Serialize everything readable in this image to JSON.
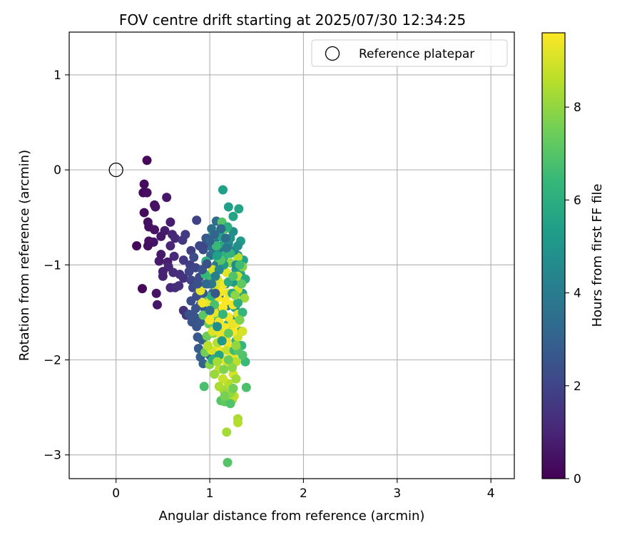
{
  "chart_data": {
    "type": "scatter",
    "title": "FOV centre drift starting at 2025/07/30 12:34:25",
    "xlabel": "Angular distance from reference (arcmin)",
    "ylabel": "Rotation from reference (arcmin)",
    "xlim": [
      -0.5,
      4.25
    ],
    "ylim": [
      -3.25,
      1.45
    ],
    "xticks": [
      0,
      1,
      2,
      3,
      4
    ],
    "xtick_labels": [
      "0",
      "1",
      "2",
      "3",
      "4"
    ],
    "yticks": [
      1,
      0,
      -1,
      -2,
      -3
    ],
    "ytick_labels": [
      "1",
      "0",
      "−1",
      "−2",
      "−3"
    ],
    "grid": true,
    "legend": {
      "position": "top-right",
      "entries": [
        {
          "label": "Reference platepar",
          "marker": "open-circle"
        }
      ]
    },
    "reference_point": {
      "x": 0,
      "y": 0
    },
    "colorbar": {
      "label": "Hours from first FF file",
      "range": [
        0,
        9.6
      ],
      "ticks": [
        0,
        2,
        4,
        6,
        8
      ],
      "tick_labels": [
        "0",
        "2",
        "4",
        "6",
        "8"
      ],
      "colormap": "viridis",
      "stops": [
        "#440154",
        "#482878",
        "#3e4989",
        "#31688e",
        "#26828e",
        "#1f9e89",
        "#35b779",
        "#6ece58",
        "#b5de2b",
        "#fde725"
      ]
    },
    "points": [
      [
        0.33,
        0.1,
        0.2
      ],
      [
        0.3,
        -0.15,
        0.3
      ],
      [
        0.29,
        -0.24,
        0.25
      ],
      [
        0.33,
        -0.24,
        0.35
      ],
      [
        0.54,
        -0.29,
        0.6
      ],
      [
        0.41,
        -0.37,
        0.4
      ],
      [
        0.42,
        -0.39,
        0.45
      ],
      [
        0.3,
        -0.45,
        0.3
      ],
      [
        0.34,
        -0.55,
        0.35
      ],
      [
        0.35,
        -0.6,
        0.4
      ],
      [
        0.41,
        -0.63,
        0.5
      ],
      [
        0.58,
        -0.55,
        0.8
      ],
      [
        0.52,
        -0.64,
        0.7
      ],
      [
        0.48,
        -0.7,
        0.6
      ],
      [
        0.6,
        -0.68,
        1.0
      ],
      [
        0.35,
        -0.75,
        0.45
      ],
      [
        0.4,
        -0.76,
        0.5
      ],
      [
        0.22,
        -0.8,
        0.2
      ],
      [
        0.34,
        -0.8,
        0.4
      ],
      [
        0.58,
        -0.8,
        1.0
      ],
      [
        0.63,
        -0.72,
        1.1
      ],
      [
        0.62,
        -0.91,
        1.1
      ],
      [
        0.48,
        -0.89,
        0.7
      ],
      [
        0.46,
        -0.96,
        0.7
      ],
      [
        0.55,
        -0.97,
        0.8
      ],
      [
        0.56,
        -1.02,
        1.0
      ],
      [
        0.5,
        -1.07,
        0.9
      ],
      [
        0.5,
        -1.12,
        0.9
      ],
      [
        0.61,
        -1.08,
        1.2
      ],
      [
        0.68,
        -1.1,
        1.3
      ],
      [
        0.72,
        -1.14,
        1.4
      ],
      [
        0.28,
        -1.25,
        0.2
      ],
      [
        0.58,
        -1.24,
        1.1
      ],
      [
        0.63,
        -1.24,
        1.2
      ],
      [
        0.67,
        -1.22,
        1.3
      ],
      [
        0.43,
        -1.3,
        0.5
      ],
      [
        0.44,
        -1.42,
        0.6
      ],
      [
        0.72,
        -1.48,
        1.4
      ],
      [
        0.75,
        -1.53,
        1.5
      ],
      [
        0.86,
        -0.53,
        1.9
      ],
      [
        0.74,
        -0.68,
        1.7
      ],
      [
        0.71,
        -0.74,
        1.6
      ],
      [
        0.8,
        -0.85,
        1.8
      ],
      [
        0.72,
        -0.95,
        1.6
      ],
      [
        0.79,
        -1.0,
        1.8
      ],
      [
        0.78,
        -1.07,
        2.0
      ],
      [
        0.8,
        -1.16,
        2.0
      ],
      [
        0.85,
        -1.03,
        2.0
      ],
      [
        0.89,
        -0.8,
        2.1
      ],
      [
        0.93,
        -0.84,
        2.2
      ],
      [
        0.96,
        -0.97,
        2.3
      ],
      [
        0.89,
        -1.13,
        2.2
      ],
      [
        0.82,
        -1.24,
        2.2
      ],
      [
        0.86,
        -1.33,
        2.3
      ],
      [
        0.8,
        -1.38,
        2.3
      ],
      [
        0.9,
        -1.42,
        2.4
      ],
      [
        0.78,
        -1.52,
        2.4
      ],
      [
        0.84,
        -1.55,
        2.5
      ],
      [
        0.81,
        -1.6,
        2.5
      ],
      [
        0.86,
        -1.65,
        2.5
      ],
      [
        0.9,
        -1.6,
        2.6
      ],
      [
        0.95,
        -1.47,
        2.7
      ],
      [
        0.93,
        -1.3,
        2.7
      ],
      [
        0.98,
        -1.2,
        2.8
      ],
      [
        1.02,
        -1.1,
        2.9
      ],
      [
        0.87,
        -1.76,
        2.7
      ],
      [
        0.92,
        -1.79,
        2.8
      ],
      [
        0.88,
        -1.88,
        2.8
      ],
      [
        0.93,
        -1.93,
        2.9
      ],
      [
        0.9,
        -1.97,
        2.9
      ],
      [
        0.93,
        -2.04,
        3.0
      ],
      [
        1.0,
        -1.95,
        3.1
      ],
      [
        1.03,
        -1.3,
        3.1
      ],
      [
        1.07,
        -1.58,
        3.2
      ],
      [
        1.01,
        -0.9,
        3.3
      ],
      [
        1.05,
        -0.75,
        3.3
      ],
      [
        1.07,
        -0.54,
        3.4
      ],
      [
        1.02,
        -0.62,
        3.5
      ],
      [
        1.1,
        -0.7,
        3.6
      ],
      [
        1.12,
        -0.85,
        3.7
      ],
      [
        1.07,
        -1.0,
        3.8
      ],
      [
        1.14,
        -1.05,
        3.9
      ],
      [
        1.05,
        -1.22,
        3.9
      ],
      [
        1.1,
        -1.33,
        4.0
      ],
      [
        1.17,
        -1.2,
        4.1
      ],
      [
        1.13,
        -1.48,
        4.2
      ],
      [
        1.19,
        -1.43,
        4.3
      ],
      [
        1.15,
        -0.95,
        4.4
      ],
      [
        1.2,
        -0.78,
        4.5
      ],
      [
        1.25,
        -0.65,
        4.7
      ],
      [
        1.14,
        -0.21,
        5.4
      ],
      [
        1.2,
        -0.39,
        5.4
      ],
      [
        1.25,
        -0.49,
        5.6
      ],
      [
        1.31,
        -0.41,
        5.6
      ],
      [
        1.33,
        -0.75,
        5.3
      ],
      [
        1.36,
        -0.95,
        5.5
      ],
      [
        1.3,
        -0.9,
        5.0
      ],
      [
        1.28,
        -1.05,
        5.2
      ],
      [
        1.33,
        -1.1,
        5.5
      ],
      [
        1.25,
        -1.18,
        5.0
      ],
      [
        1.3,
        -1.22,
        5.3
      ],
      [
        1.35,
        -1.3,
        5.6
      ],
      [
        1.25,
        -1.3,
        4.9
      ],
      [
        1.27,
        -1.45,
        5.5
      ],
      [
        1.3,
        -1.55,
        5.8
      ],
      [
        1.22,
        -1.57,
        5.1
      ],
      [
        1.2,
        -1.62,
        5.7
      ],
      [
        1.33,
        -1.7,
        6.0
      ],
      [
        1.28,
        -1.8,
        6.2
      ],
      [
        1.34,
        -1.85,
        6.3
      ],
      [
        1.38,
        -2.02,
        6.5
      ],
      [
        1.39,
        -2.29,
        6.8
      ],
      [
        1.35,
        -1.95,
        6.9
      ],
      [
        1.02,
        -0.7,
        6.2
      ],
      [
        1.1,
        -0.65,
        6.6
      ],
      [
        1.13,
        -0.55,
        7.0
      ],
      [
        1.17,
        -0.62,
        7.2
      ],
      [
        0.96,
        -0.96,
        6.0
      ],
      [
        1.08,
        -0.92,
        6.4
      ],
      [
        0.99,
        -1.13,
        6.7
      ],
      [
        0.9,
        -1.27,
        7.0
      ],
      [
        0.98,
        -1.38,
        7.3
      ],
      [
        0.93,
        -1.53,
        7.1
      ],
      [
        1.06,
        -1.52,
        7.6
      ],
      [
        0.99,
        -1.62,
        7.3
      ],
      [
        0.97,
        -1.75,
        7.4
      ],
      [
        1.04,
        -1.72,
        7.8
      ],
      [
        0.95,
        -1.92,
        7.5
      ],
      [
        1.0,
        -2.05,
        7.8
      ],
      [
        0.94,
        -2.28,
        6.8
      ],
      [
        1.12,
        -2.43,
        7.0
      ],
      [
        1.16,
        -2.44,
        7.2
      ],
      [
        1.19,
        -3.08,
        7.0
      ],
      [
        1.18,
        -2.76,
        8.3
      ],
      [
        1.3,
        -2.62,
        8.4
      ],
      [
        1.3,
        -2.66,
        8.5
      ],
      [
        1.24,
        -2.42,
        8.3
      ],
      [
        1.26,
        -2.38,
        8.6
      ],
      [
        1.22,
        -2.35,
        8.0
      ],
      [
        1.15,
        -2.32,
        8.2
      ],
      [
        1.2,
        -2.25,
        8.5
      ],
      [
        1.14,
        -2.2,
        8.8
      ],
      [
        1.25,
        -2.15,
        9.0
      ],
      [
        1.1,
        -2.1,
        8.7
      ],
      [
        1.2,
        -2.05,
        9.1
      ],
      [
        1.15,
        -2.0,
        9.2
      ],
      [
        1.25,
        -1.95,
        9.3
      ],
      [
        1.1,
        -1.9,
        9.4
      ],
      [
        1.2,
        -1.86,
        9.5
      ],
      [
        1.18,
        -1.8,
        9.4
      ],
      [
        1.3,
        -1.76,
        8.9
      ],
      [
        1.12,
        -1.74,
        9.3
      ],
      [
        1.25,
        -1.7,
        9.6
      ],
      [
        1.03,
        -1.7,
        9.1
      ],
      [
        1.16,
        -1.66,
        9.5
      ],
      [
        1.28,
        -1.62,
        9.6
      ],
      [
        1.1,
        -1.6,
        9.4
      ],
      [
        1.2,
        -1.55,
        9.5
      ],
      [
        1.3,
        -1.52,
        9.2
      ],
      [
        1.05,
        -1.5,
        9.3
      ],
      [
        1.14,
        -1.45,
        9.6
      ],
      [
        1.25,
        -1.42,
        9.4
      ],
      [
        0.99,
        -1.4,
        9.2
      ],
      [
        1.08,
        -1.35,
        9.5
      ],
      [
        1.2,
        -1.3,
        9.3
      ],
      [
        1.3,
        -1.26,
        9.0
      ],
      [
        0.9,
        -1.27,
        9.3
      ],
      [
        1.15,
        -1.2,
        9.4
      ],
      [
        1.08,
        -1.15,
        9.1
      ],
      [
        1.3,
        -1.12,
        8.8
      ],
      [
        1.18,
        -1.08,
        9.2
      ],
      [
        1.03,
        -1.05,
        9.0
      ],
      [
        1.14,
        -1.0,
        8.7
      ],
      [
        1.3,
        -0.92,
        8.6
      ],
      [
        0.92,
        -1.4,
        9.4
      ],
      [
        1.02,
        -1.9,
        9.0
      ],
      [
        1.37,
        -1.35,
        8.2
      ],
      [
        1.35,
        -1.02,
        7.8
      ],
      [
        1.22,
        -0.98,
        8.0
      ],
      [
        0.98,
        -1.85,
        8.6
      ],
      [
        1.08,
        -1.82,
        8.5
      ],
      [
        1.18,
        -1.9,
        8.8
      ],
      [
        1.28,
        -2.02,
        8.6
      ],
      [
        1.35,
        -1.7,
        9.0
      ],
      [
        1.1,
        -2.28,
        8.4
      ],
      [
        1.28,
        -2.2,
        8.2
      ],
      [
        1.24,
        -1.62,
        9.3
      ],
      [
        1.12,
        -1.28,
        9.5
      ],
      [
        1.06,
        -1.22,
        9.0
      ],
      [
        1.17,
        -1.38,
        9.6
      ],
      [
        1.0,
        -1.58,
        9.5
      ],
      [
        1.1,
        -1.7,
        9.3
      ],
      [
        1.24,
        -1.3,
        5.8
      ],
      [
        1.15,
        -1.0,
        5.2
      ],
      [
        1.2,
        -1.18,
        5.9
      ],
      [
        1.08,
        -0.8,
        5.0
      ],
      [
        1.16,
        -0.9,
        6.1
      ],
      [
        1.22,
        -0.72,
        4.8
      ],
      [
        1.26,
        -0.85,
        4.4
      ],
      [
        1.3,
        -0.8,
        4.8
      ],
      [
        1.28,
        -1.0,
        4.6
      ],
      [
        1.1,
        -1.05,
        4.5
      ],
      [
        1.06,
        -1.12,
        4.2
      ],
      [
        1.02,
        -1.2,
        3.8
      ],
      [
        1.04,
        -0.85,
        3.6
      ],
      [
        0.98,
        -0.8,
        3.4
      ],
      [
        1.08,
        -1.65,
        4.7
      ],
      [
        1.13,
        -1.8,
        5.1
      ],
      [
        1.1,
        -1.95,
        5.6
      ],
      [
        1.03,
        -2.0,
        6.0
      ],
      [
        1.26,
        -1.9,
        6.6
      ],
      [
        1.35,
        -1.5,
        6.3
      ],
      [
        1.3,
        -1.4,
        6.0
      ],
      [
        1.38,
        -1.15,
        5.9
      ],
      [
        1.15,
        -0.78,
        5.8
      ],
      [
        1.19,
        -0.6,
        5.9
      ],
      [
        1.12,
        -0.7,
        5.5
      ],
      [
        1.07,
        -0.8,
        6.5
      ],
      [
        0.95,
        -1.1,
        6.4
      ],
      [
        1.02,
        -1.33,
        6.2
      ],
      [
        1.05,
        -1.42,
        6.8
      ],
      [
        1.14,
        -1.52,
        6.3
      ],
      [
        1.2,
        -2.0,
        7.4
      ],
      [
        1.3,
        -1.9,
        7.0
      ],
      [
        1.15,
        -2.1,
        7.7
      ],
      [
        1.05,
        -2.15,
        8.1
      ],
      [
        1.25,
        -2.3,
        7.5
      ],
      [
        1.16,
        -2.38,
        7.6
      ],
      [
        1.22,
        -2.46,
        6.9
      ],
      [
        1.24,
        -2.08,
        7.9
      ],
      [
        1.08,
        -2.02,
        8.3
      ],
      [
        1.28,
        -1.85,
        8.0
      ],
      [
        1.2,
        -1.72,
        7.3
      ],
      [
        1.32,
        -1.58,
        7.7
      ],
      [
        1.27,
        -1.32,
        7.9
      ],
      [
        1.34,
        -1.2,
        7.2
      ],
      [
        1.25,
        -1.12,
        6.9
      ],
      [
        1.32,
        -1.0,
        6.6
      ],
      [
        1.22,
        -0.88,
        6.3
      ],
      [
        1.12,
        -0.95,
        7.0
      ],
      [
        1.08,
        -0.9,
        5.4
      ],
      [
        0.96,
        -1.2,
        3.2
      ],
      [
        1.0,
        -1.48,
        3.4
      ],
      [
        1.06,
        -1.3,
        2.6
      ],
      [
        0.97,
        -0.99,
        2.4
      ],
      [
        0.92,
        -1.05,
        2.5
      ],
      [
        0.87,
        -1.2,
        2.4
      ],
      [
        0.85,
        -1.46,
        2.5
      ],
      [
        0.83,
        -0.92,
        2.2
      ],
      [
        0.93,
        -0.8,
        2.1
      ],
      [
        0.96,
        -0.72,
        2.6
      ],
      [
        1.0,
        -0.75,
        3.0
      ],
      [
        1.05,
        -0.68,
        3.1
      ],
      [
        1.12,
        -0.62,
        3.2
      ],
      [
        1.17,
        -0.72,
        3.5
      ],
      [
        1.18,
        -0.82,
        3.8
      ]
    ]
  }
}
